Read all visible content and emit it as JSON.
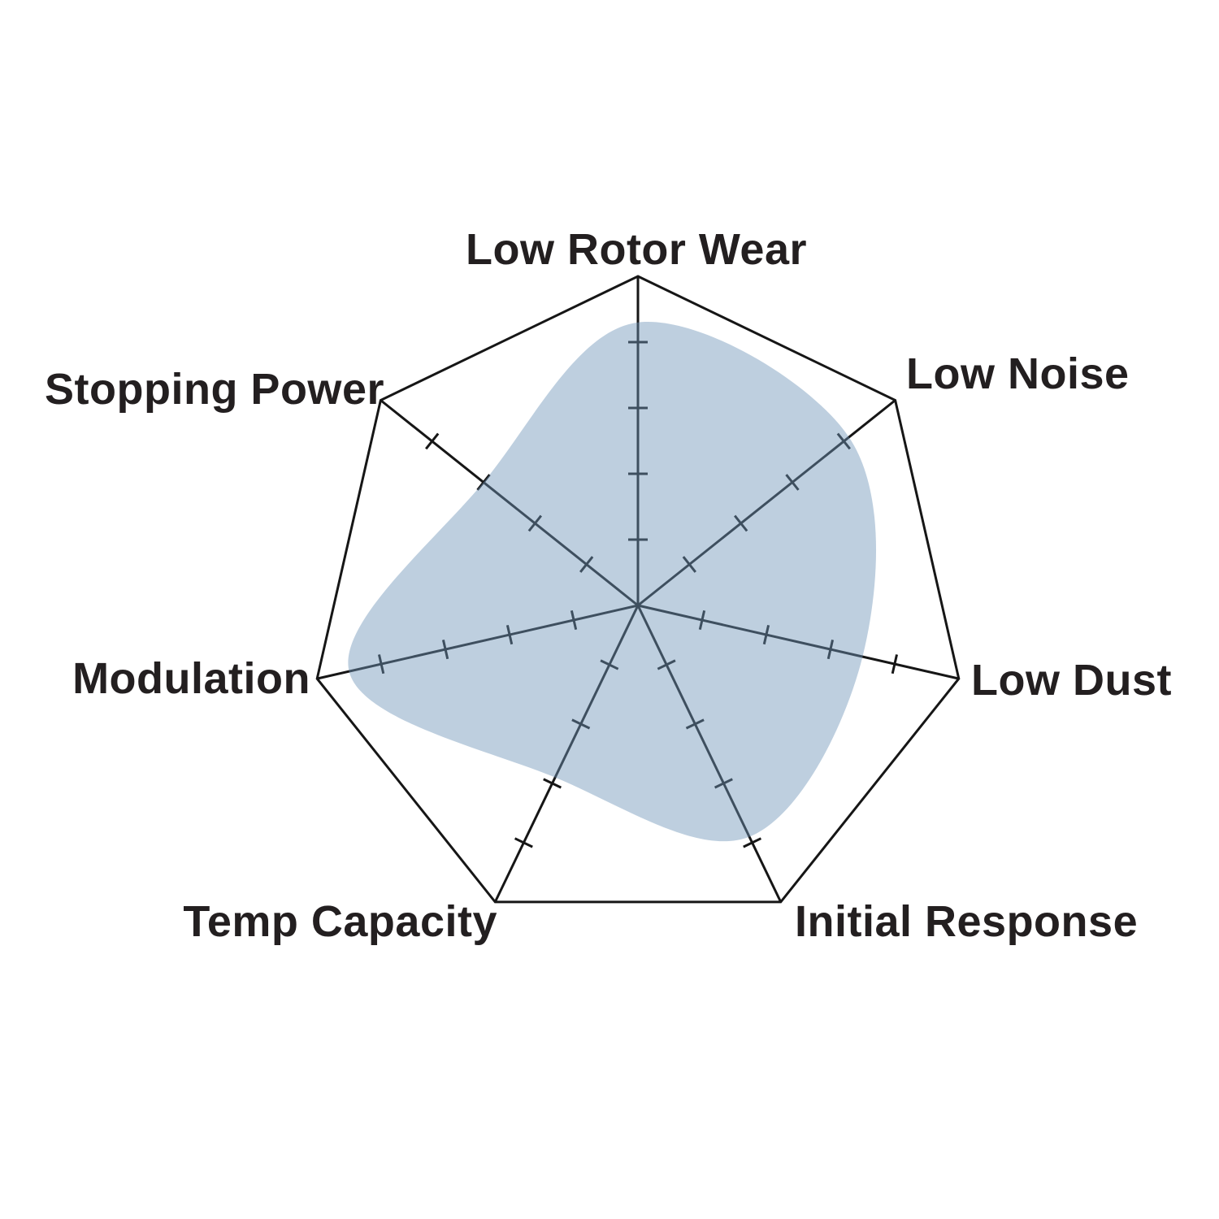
{
  "chart_data": {
    "type": "radar",
    "title": "",
    "axis_count": 7,
    "categories": [
      "Low Rotor Wear",
      "Low Noise",
      "Low Dust",
      "Initial Response",
      "Temp Capacity",
      "Modulation",
      "Stopping Power"
    ],
    "values": [
      4.3,
      4.1,
      3.5,
      3.9,
      2.9,
      4.5,
      3.0
    ],
    "scale_min": 0,
    "scale_max": 5,
    "tick_values": [
      1,
      2,
      3,
      4
    ],
    "grid": "spokes-with-ticks, single outer heptagon ring",
    "legend_position": "none",
    "curve": "smooth-closed-spline",
    "colors": {
      "series_fill": "rgba(111,148,184,0.45)",
      "grid_line": "#161616",
      "tick_mark": "#161616",
      "outline_ring": "#161616",
      "label_text": "#231f20",
      "background": "#ffffff"
    }
  }
}
